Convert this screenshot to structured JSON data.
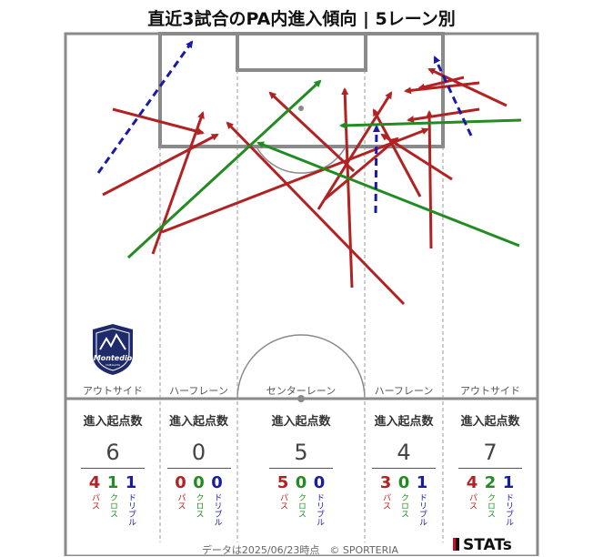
{
  "title": "直近3試合のPA内進入傾向 | 5レーン別",
  "lanes": [
    {
      "label": "アウトサイド",
      "stats_heading": "進入起点数",
      "total": "6",
      "breakdown": [
        {
          "value": "4",
          "label": "パス"
        },
        {
          "value": "1",
          "label": "クロス"
        },
        {
          "value": "1",
          "label": "ドリブル"
        }
      ]
    },
    {
      "label": "ハーフレーン",
      "stats_heading": "進入起点数",
      "total": "0",
      "breakdown": [
        {
          "value": "0",
          "label": "パス"
        },
        {
          "value": "0",
          "label": "クロス"
        },
        {
          "value": "0",
          "label": "ドリブル"
        }
      ]
    },
    {
      "label": "センターレーン",
      "stats_heading": "進入起点数",
      "total": "5",
      "breakdown": [
        {
          "value": "5",
          "label": "パス"
        },
        {
          "value": "0",
          "label": "クロス"
        },
        {
          "value": "0",
          "label": "ドリブル"
        }
      ]
    },
    {
      "label": "ハーフレーン",
      "stats_heading": "進入起点数",
      "total": "4",
      "breakdown": [
        {
          "value": "3",
          "label": "パス"
        },
        {
          "value": "0",
          "label": "クロス"
        },
        {
          "value": "1",
          "label": "ドリブル"
        }
      ]
    },
    {
      "label": "アウトサイド",
      "stats_heading": "進入起点数",
      "total": "7",
      "breakdown": [
        {
          "value": "4",
          "label": "パス"
        },
        {
          "value": "2",
          "label": "クロス"
        },
        {
          "value": "1",
          "label": "ドリブル"
        }
      ]
    }
  ],
  "footer": {
    "note": "データは2025/06/23時点　© SPORTERIA",
    "brand": "STATs"
  },
  "logo": {
    "text": "Montedio",
    "subtext": "YAMAGATA"
  },
  "colors": {
    "pass": "#b22222",
    "cross": "#228b22",
    "dribble": "#1a1aa8",
    "pitch_line": "#8a8a8a"
  }
}
